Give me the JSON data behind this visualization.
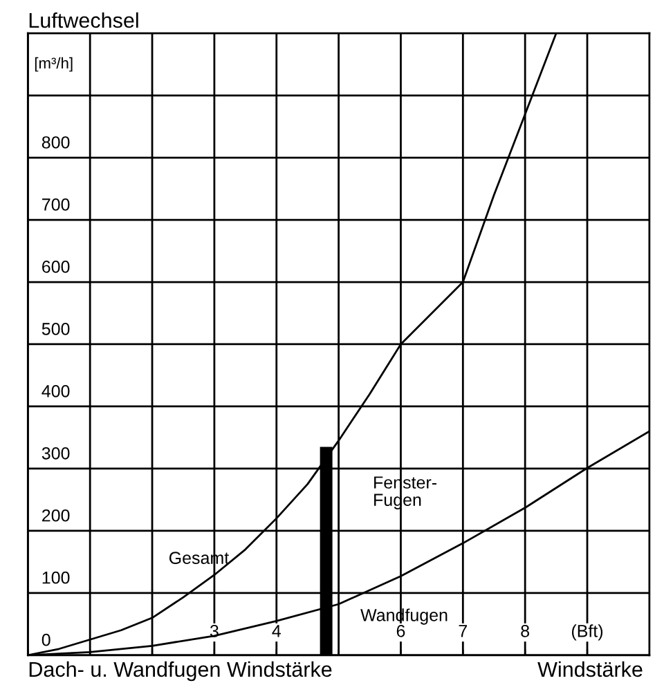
{
  "chart_data": {
    "type": "line",
    "title": "Luftwechsel",
    "ylabel": "[m³/h]",
    "xlabel": "Windstärke",
    "annotations": [
      "Dach- u. Wandfugen Windstärke"
    ],
    "xlim": [
      0,
      10
    ],
    "ylim": [
      0,
      1000
    ],
    "xticks": [
      {
        "value": 0,
        "label": null
      },
      {
        "value": 1,
        "label": null
      },
      {
        "value": 2,
        "label": null
      },
      3,
      4,
      {
        "value": 5,
        "label": null
      },
      6,
      7,
      8,
      {
        "value": 9,
        "label": "(Bft)"
      }
    ],
    "yticks": [
      {
        "value": 0,
        "label": "0"
      },
      100,
      200,
      300,
      400,
      500,
      600,
      700,
      800,
      {
        "value": 900,
        "label": null
      }
    ],
    "grid": true,
    "marker": "none",
    "line_style": "solid",
    "series": [
      {
        "name": "Gesamt",
        "color": "#000000",
        "x": [
          0,
          0.5,
          1,
          1.5,
          2,
          2.5,
          3,
          3.5,
          4,
          4.5,
          5,
          5.5,
          6,
          6.5,
          7,
          7.5,
          8,
          8.5
        ],
        "values": [
          0,
          10,
          25,
          40,
          60,
          93,
          129,
          170,
          220,
          275,
          345,
          420,
          500,
          550,
          600,
          740,
          870,
          1000
        ]
      },
      {
        "name": "Wandfugen",
        "color": "#000000",
        "x": [
          0,
          1,
          2,
          3,
          4,
          5,
          6,
          7,
          8,
          9,
          10
        ],
        "values": [
          0,
          5,
          15,
          31,
          55,
          82,
          127,
          180,
          237,
          301,
          360
        ]
      },
      {
        "name": "Fenster-Fugen",
        "type": "bar",
        "color": "#000000",
        "x": [
          4.8
        ],
        "values": [
          335
        ]
      }
    ]
  }
}
